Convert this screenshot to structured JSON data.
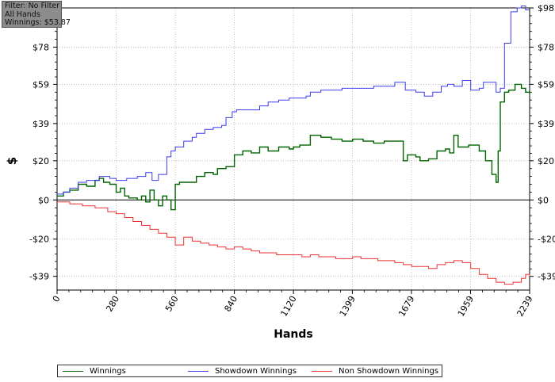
{
  "info": {
    "filter": "Filter: No Filter",
    "hands": "All Hands",
    "winnings": "Winnings: $53.87"
  },
  "chart_data": {
    "type": "line",
    "xlabel": "Hands",
    "ylabel": "$",
    "xlim": [
      0,
      2239
    ],
    "ylim": [
      -46,
      98
    ],
    "x_ticks": [
      0,
      280,
      560,
      840,
      1120,
      1399,
      1679,
      1959,
      2239
    ],
    "y_ticks": [
      {
        "value": 98,
        "label": "$98"
      },
      {
        "value": 78,
        "label": "$78"
      },
      {
        "value": 59,
        "label": "$59"
      },
      {
        "value": 39,
        "label": "$39"
      },
      {
        "value": 20,
        "label": "$20"
      },
      {
        "value": 0,
        "label": "$0"
      },
      {
        "value": -20,
        "label": "-$20"
      },
      {
        "value": -39,
        "label": "-$39"
      }
    ],
    "grid": true,
    "legend_position": "bottom",
    "series": [
      {
        "name": "Winnings",
        "color": "#006400",
        "x": [
          0,
          30,
          60,
          100,
          140,
          180,
          200,
          220,
          250,
          280,
          300,
          320,
          340,
          380,
          400,
          420,
          440,
          460,
          480,
          500,
          520,
          540,
          560,
          580,
          620,
          660,
          700,
          740,
          760,
          800,
          840,
          880,
          920,
          960,
          1000,
          1050,
          1100,
          1120,
          1150,
          1180,
          1200,
          1250,
          1300,
          1350,
          1400,
          1450,
          1500,
          1550,
          1600,
          1640,
          1660,
          1700,
          1720,
          1760,
          1800,
          1840,
          1860,
          1880,
          1900,
          1950,
          2000,
          2030,
          2060,
          2080,
          2090,
          2100,
          2120,
          2140,
          2170,
          2200,
          2220,
          2239
        ],
        "values": [
          2,
          4,
          5,
          8,
          7,
          10,
          11,
          9,
          8,
          4,
          6,
          2,
          1,
          0,
          2,
          -1,
          5,
          0,
          -3,
          2,
          0,
          -5,
          8,
          9,
          9,
          12,
          14,
          13,
          16,
          17,
          23,
          25,
          24,
          27,
          25,
          27,
          26,
          27,
          28,
          28,
          33,
          32,
          31,
          30,
          31,
          30,
          29,
          30,
          30,
          20,
          23,
          22,
          20,
          21,
          25,
          26,
          24,
          33,
          27,
          28,
          25,
          20,
          13,
          9,
          25,
          50,
          55,
          56,
          59,
          57,
          55,
          54
        ]
      },
      {
        "name": "Showdown Winnings",
        "color": "#3b3bf0",
        "x": [
          0,
          30,
          60,
          100,
          140,
          200,
          250,
          280,
          330,
          380,
          420,
          450,
          480,
          520,
          540,
          560,
          600,
          640,
          660,
          700,
          740,
          780,
          800,
          830,
          850,
          900,
          960,
          1000,
          1050,
          1100,
          1130,
          1180,
          1200,
          1250,
          1300,
          1350,
          1400,
          1450,
          1500,
          1550,
          1600,
          1650,
          1700,
          1740,
          1780,
          1820,
          1850,
          1880,
          1920,
          1960,
          2000,
          2020,
          2050,
          2080,
          2100,
          2120,
          2150,
          2180,
          2200,
          2220,
          2239
        ],
        "values": [
          3,
          4,
          6,
          9,
          10,
          12,
          11,
          10,
          11,
          12,
          14,
          10,
          13,
          22,
          25,
          27,
          30,
          32,
          34,
          36,
          37,
          38,
          42,
          45,
          46,
          46,
          48,
          50,
          51,
          52,
          52,
          53,
          55,
          56,
          56,
          57,
          57,
          57,
          58,
          58,
          60,
          56,
          55,
          53,
          55,
          58,
          59,
          58,
          61,
          56,
          57,
          60,
          60,
          55,
          57,
          80,
          96,
          98,
          99,
          97,
          97
        ]
      },
      {
        "name": "Non Showdown Winnings",
        "color": "#ee3030",
        "x": [
          0,
          60,
          120,
          180,
          240,
          280,
          320,
          360,
          400,
          440,
          480,
          520,
          560,
          600,
          640,
          680,
          720,
          760,
          800,
          840,
          880,
          920,
          960,
          1000,
          1040,
          1080,
          1120,
          1160,
          1200,
          1240,
          1280,
          1320,
          1360,
          1400,
          1440,
          1480,
          1520,
          1560,
          1600,
          1640,
          1680,
          1720,
          1760,
          1800,
          1840,
          1880,
          1920,
          1960,
          2000,
          2040,
          2080,
          2120,
          2160,
          2200,
          2220,
          2239
        ],
        "values": [
          -1,
          -2,
          -3,
          -4,
          -6,
          -7,
          -9,
          -11,
          -13,
          -15,
          -17,
          -19,
          -23,
          -19,
          -21,
          -22,
          -23,
          -24,
          -25,
          -24,
          -25,
          -26,
          -27,
          -27,
          -28,
          -28,
          -28,
          -29,
          -28,
          -29,
          -29,
          -30,
          -30,
          -29,
          -30,
          -30,
          -31,
          -31,
          -32,
          -33,
          -34,
          -34,
          -35,
          -33,
          -32,
          -31,
          -32,
          -35,
          -38,
          -40,
          -42,
          -43,
          -42,
          -40,
          -38,
          -39
        ]
      }
    ]
  }
}
